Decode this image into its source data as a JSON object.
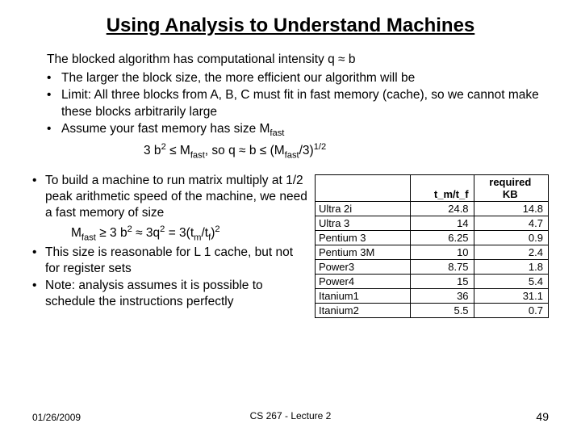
{
  "title": "Using Analysis to Understand Machines",
  "intro": "The blocked algorithm has computational intensity q ≈ b",
  "topBullets": [
    "The larger the block size, the more efficient our algorithm will be",
    "Limit:  All three blocks from A, B, C must fit in fast memory (cache), so we cannot make these blocks arbitrarily large",
    "Assume your fast memory has size M"
  ],
  "formula1_prefix": "3 b",
  "formula1_mid1": " ≤ M",
  "formula1_mid2": ",   so   q ≈ b ≤ (M",
  "formula1_tail": "/3)",
  "leftBullets": {
    "b1a": "To build a machine to run matrix multiply at 1/2 peak arithmetic speed of the machine, we need a fast memory of size",
    "b2": "This size is reasonable for L 1 cache, but not for register sets",
    "b3": "Note: analysis assumes it is possible to schedule the instructions perfectly"
  },
  "formula2": {
    "p1": "M",
    "p2": " ≥ 3 b",
    "p3": " ≈ 3q",
    "p4": " = 3(t",
    "p5": "/t",
    "p6": ")"
  },
  "table": {
    "headers": [
      "",
      "t_m/t_f",
      "required KB"
    ],
    "rows": [
      [
        "Ultra 2i",
        "24.8",
        "14.8"
      ],
      [
        "Ultra 3",
        "14",
        "4.7"
      ],
      [
        "Pentium 3",
        "6.25",
        "0.9"
      ],
      [
        "Pentium 3M",
        "10",
        "2.4"
      ],
      [
        "Power3",
        "8.75",
        "1.8"
      ],
      [
        "Power4",
        "15",
        "5.4"
      ],
      [
        "Itanium1",
        "36",
        "31.1"
      ],
      [
        "Itanium2",
        "5.5",
        "0.7"
      ]
    ]
  },
  "footer": {
    "date": "01/26/2009",
    "course": "CS 267 - Lecture 2",
    "page": "49"
  }
}
